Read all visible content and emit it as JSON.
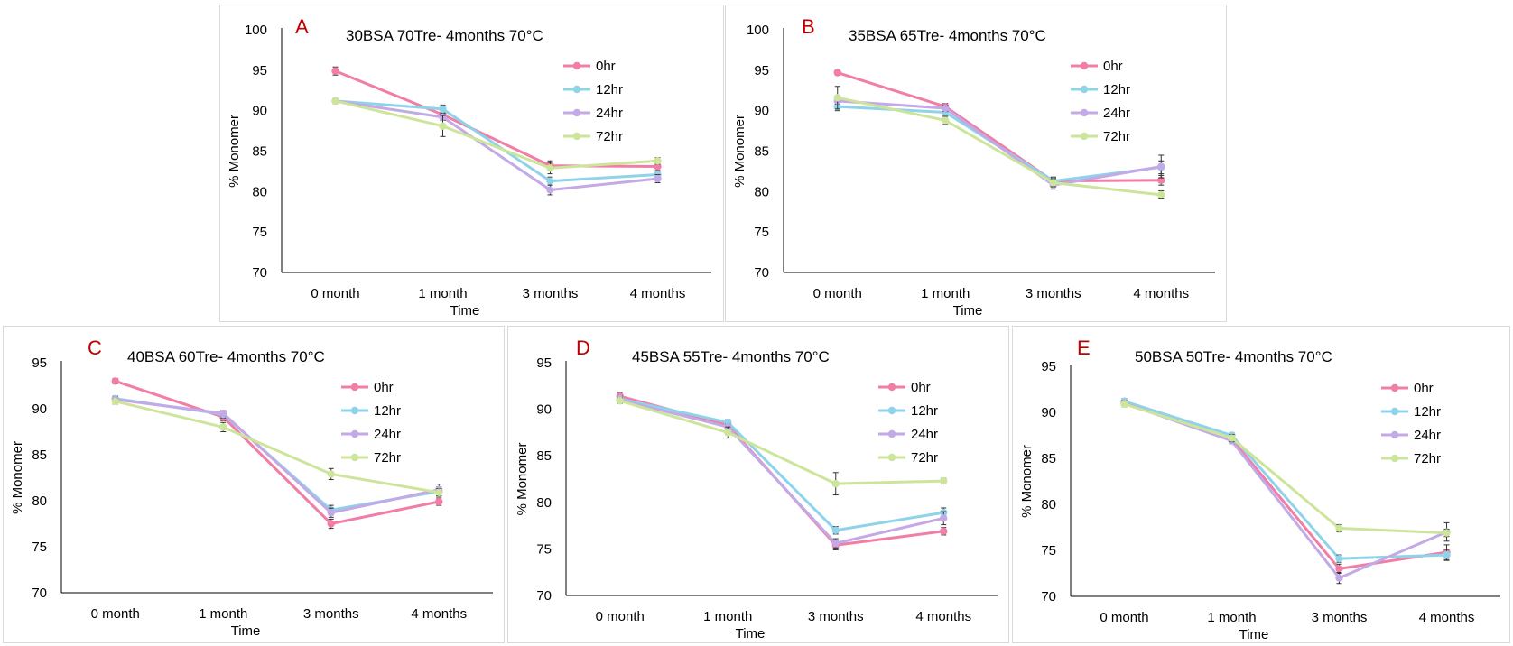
{
  "colors": {
    "0hr": "#f07ea6",
    "12hr": "#8fd3ea",
    "24hr": "#c3a9e6",
    "72hr": "#cde59a",
    "panel_letter": "#c00000",
    "axis": "#000000",
    "text": "#000000",
    "error_bar": "#333333"
  },
  "chart_data": [
    {
      "type": "line",
      "letter": "A",
      "title": "30BSA 70Tre- 4months 70°C",
      "xlabel": "Time",
      "ylabel": "% Monomer",
      "categories": [
        "0 month",
        "1 month",
        "3 months",
        "4 months"
      ],
      "ylim": [
        70,
        100
      ],
      "yticks": [
        70,
        75,
        80,
        85,
        90,
        95,
        100
      ],
      "legend_position": "top-right",
      "grid": false,
      "series": [
        {
          "name": "0hr",
          "values": [
            94.9,
            89.5,
            83.2,
            83.1
          ],
          "errors": [
            0.5,
            0.4,
            0.6,
            0.5
          ]
        },
        {
          "name": "12hr",
          "values": [
            91.2,
            90.2,
            81.3,
            82.1
          ],
          "errors": [
            0.3,
            0.5,
            0.5,
            0.4
          ]
        },
        {
          "name": "24hr",
          "values": [
            91.2,
            89.2,
            80.2,
            81.6
          ],
          "errors": [
            0.3,
            0.4,
            0.6,
            0.5
          ]
        },
        {
          "name": "72hr",
          "values": [
            91.2,
            88.1,
            82.9,
            83.8
          ],
          "errors": [
            0.3,
            1.3,
            0.7,
            0.4
          ]
        }
      ]
    },
    {
      "type": "line",
      "letter": "B",
      "title": "35BSA 65Tre- 4months 70°C",
      "xlabel": "Time",
      "ylabel": "% Monomer",
      "categories": [
        "0 month",
        "1 month",
        "3 months",
        "4 months"
      ],
      "ylim": [
        70,
        100
      ],
      "yticks": [
        70,
        75,
        80,
        85,
        90,
        95,
        100
      ],
      "legend_position": "top-right",
      "grid": false,
      "series": [
        {
          "name": "0hr",
          "values": [
            94.7,
            90.5,
            81.3,
            81.4
          ],
          "errors": [
            0.3,
            0.4,
            0.4,
            0.6
          ]
        },
        {
          "name": "12hr",
          "values": [
            90.5,
            89.8,
            81.3,
            83.0
          ],
          "errors": [
            0.5,
            0.5,
            0.5,
            0.8
          ]
        },
        {
          "name": "24hr",
          "values": [
            91.2,
            90.3,
            80.8,
            83.1
          ],
          "errors": [
            0.4,
            0.4,
            0.5,
            1.4
          ]
        },
        {
          "name": "72hr",
          "values": [
            91.6,
            88.8,
            81.1,
            79.6
          ],
          "errors": [
            1.4,
            0.5,
            0.5,
            0.5
          ]
        }
      ]
    },
    {
      "type": "line",
      "letter": "C",
      "title": "40BSA 60Tre- 4months 70°C",
      "xlabel": "Time",
      "ylabel": "% Monomer",
      "categories": [
        "0 month",
        "1 month",
        "3 months",
        "4 months"
      ],
      "ylim": [
        70,
        95
      ],
      "yticks": [
        70,
        75,
        80,
        85,
        90,
        95
      ],
      "legend_position": "top-right",
      "grid": false,
      "series": [
        {
          "name": "0hr",
          "values": [
            93.0,
            89.1,
            77.5,
            79.9
          ],
          "errors": [
            0.3,
            0.4,
            0.5,
            0.4
          ]
        },
        {
          "name": "12hr",
          "values": [
            91.1,
            89.4,
            79.0,
            81.0
          ],
          "errors": [
            0.3,
            0.4,
            0.5,
            0.5
          ]
        },
        {
          "name": "24hr",
          "values": [
            91.0,
            89.5,
            78.7,
            81.2
          ],
          "errors": [
            0.3,
            0.3,
            0.5,
            0.6
          ]
        },
        {
          "name": "72hr",
          "values": [
            90.8,
            88.0,
            82.9,
            80.9
          ],
          "errors": [
            0.3,
            0.5,
            0.6,
            0.4
          ]
        }
      ]
    },
    {
      "type": "line",
      "letter": "D",
      "title": "45BSA 55Tre- 4months 70°C",
      "xlabel": "Time",
      "ylabel": "% Monomer",
      "categories": [
        "0 month",
        "1 month",
        "3 months",
        "4 months"
      ],
      "ylim": [
        70,
        95
      ],
      "yticks": [
        70,
        75,
        80,
        85,
        90,
        95
      ],
      "legend_position": "top-right",
      "grid": false,
      "series": [
        {
          "name": "0hr",
          "values": [
            91.4,
            88.3,
            75.4,
            76.9
          ],
          "errors": [
            0.4,
            0.4,
            0.5,
            0.4
          ]
        },
        {
          "name": "12hr",
          "values": [
            91.1,
            88.6,
            77.0,
            78.9
          ],
          "errors": [
            0.3,
            0.3,
            0.4,
            0.5
          ]
        },
        {
          "name": "24hr",
          "values": [
            91.0,
            88.1,
            75.6,
            78.3
          ],
          "errors": [
            0.3,
            0.3,
            0.5,
            0.7
          ]
        },
        {
          "name": "72hr",
          "values": [
            90.9,
            87.5,
            82.0,
            82.3
          ],
          "errors": [
            0.3,
            0.6,
            1.2,
            0.3
          ]
        }
      ]
    },
    {
      "type": "line",
      "letter": "E",
      "title": "50BSA 50Tre- 4months 70°C",
      "xlabel": "Time",
      "ylabel": "% Monomer",
      "categories": [
        "0 month",
        "1 month",
        "3 months",
        "4 months"
      ],
      "ylim": [
        70,
        95
      ],
      "yticks": [
        70,
        75,
        80,
        85,
        90,
        95
      ],
      "legend_position": "top-right",
      "grid": false,
      "series": [
        {
          "name": "0hr",
          "values": [
            91.1,
            87.1,
            73.0,
            74.8
          ],
          "errors": [
            0.3,
            0.4,
            0.5,
            0.8
          ]
        },
        {
          "name": "12hr",
          "values": [
            91.2,
            87.5,
            74.1,
            74.5
          ],
          "errors": [
            0.3,
            0.3,
            0.4,
            0.6
          ]
        },
        {
          "name": "24hr",
          "values": [
            91.0,
            86.9,
            72.0,
            77.0
          ],
          "errors": [
            0.3,
            0.3,
            0.6,
            1.0
          ]
        },
        {
          "name": "72hr",
          "values": [
            90.9,
            87.2,
            77.4,
            76.9
          ],
          "errors": [
            0.3,
            0.4,
            0.4,
            0.4
          ]
        }
      ]
    }
  ]
}
